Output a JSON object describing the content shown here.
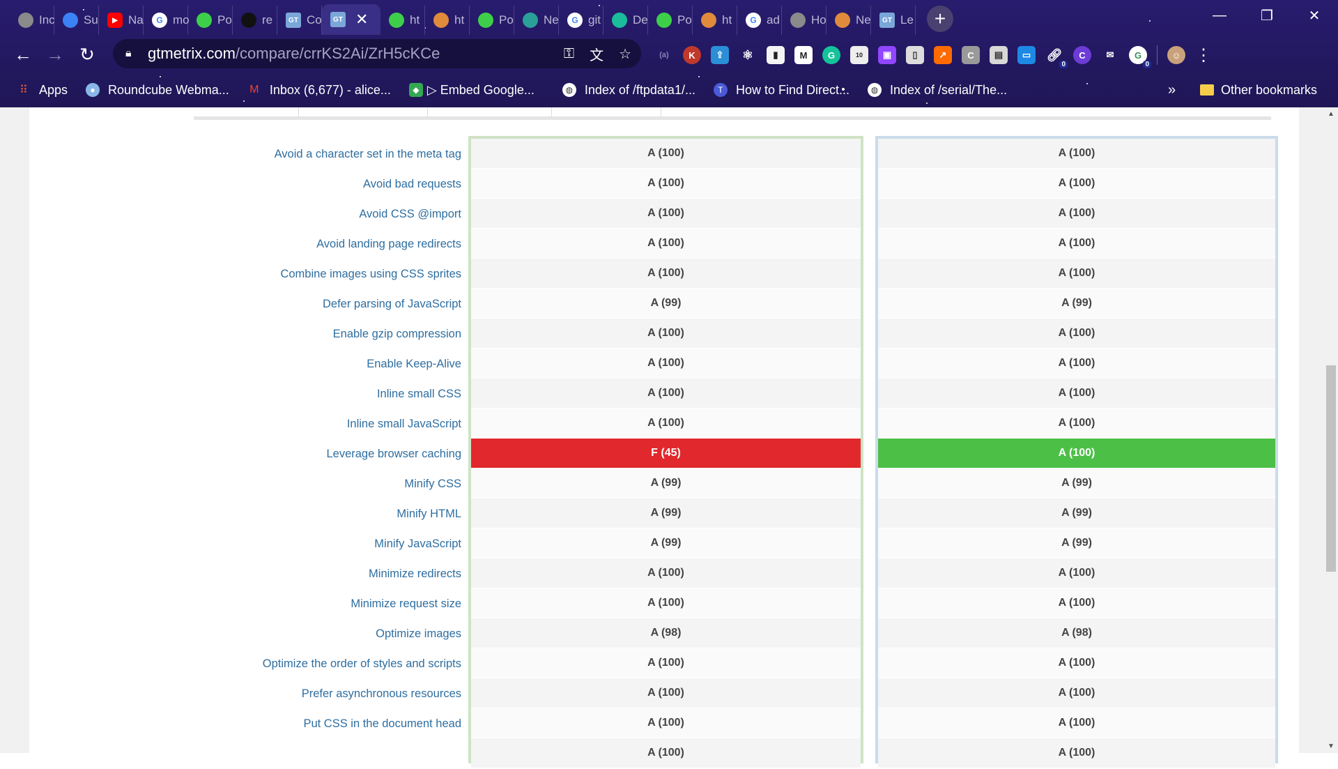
{
  "browser": {
    "tabs": [
      {
        "label": "Inc",
        "icon": "globe-icon",
        "color": "#8a8a8a"
      },
      {
        "label": "Su",
        "icon": "ms-icon",
        "color": "#3b82f6"
      },
      {
        "label": "Na",
        "icon": "youtube-icon",
        "color": "#ff0000"
      },
      {
        "label": "mo",
        "icon": "google-icon",
        "color": "#ffffff"
      },
      {
        "label": "Po",
        "icon": "alien-icon",
        "color": "#3ecf4a"
      },
      {
        "label": "re",
        "icon": "github-icon",
        "color": "#111111"
      },
      {
        "label": "Co",
        "icon": "gtmetrix-icon",
        "color": "#7aa7d8"
      },
      {
        "label": "",
        "icon": "gtmetrix-icon",
        "color": "#7aa7d8",
        "active": true
      },
      {
        "label": "ht",
        "icon": "alien-icon",
        "color": "#3ecf4a"
      },
      {
        "label": "ht",
        "icon": "pen-icon",
        "color": "#e08a3c"
      },
      {
        "label": "Po",
        "icon": "alien-icon",
        "color": "#3ecf4a"
      },
      {
        "label": "Ne",
        "icon": "triangle-icon",
        "color": "#2aa198"
      },
      {
        "label": "git",
        "icon": "google-icon",
        "color": "#ffffff"
      },
      {
        "label": "De",
        "icon": "diamond-icon",
        "color": "#1abc9c"
      },
      {
        "label": "Po",
        "icon": "alien-icon",
        "color": "#3ecf4a"
      },
      {
        "label": "ht",
        "icon": "pen-icon",
        "color": "#e08a3c"
      },
      {
        "label": "ad",
        "icon": "google-icon",
        "color": "#ffffff"
      },
      {
        "label": "Ho",
        "icon": "globe-icon",
        "color": "#8a8a8a"
      },
      {
        "label": "Ne",
        "icon": "pen-icon",
        "color": "#e08a3c"
      },
      {
        "label": "Le",
        "icon": "gtmetrix-icon",
        "color": "#7aa7d8"
      }
    ],
    "url_host": "gtmetrix.com",
    "url_path": "/compare/crrKS2Ai/ZrH5cKCe",
    "bookmarks": {
      "apps": "Apps",
      "items": [
        "Roundcube Webma...",
        "Inbox (6,677) - alice...",
        "▷ Embed Google...",
        "Index of /ftpdata1/...",
        "How to Find Direct...",
        "Index of /serial/The..."
      ],
      "more": "»",
      "other": "Other bookmarks"
    },
    "extension_badges": {
      "first": "0",
      "second": "0"
    }
  },
  "rows": [
    {
      "label": "Avoid a character set in the meta tag",
      "a": "A (100)",
      "b": "A (100)"
    },
    {
      "label": "Avoid bad requests",
      "a": "A (100)",
      "b": "A (100)"
    },
    {
      "label": "Avoid CSS @import",
      "a": "A (100)",
      "b": "A (100)"
    },
    {
      "label": "Avoid landing page redirects",
      "a": "A (100)",
      "b": "A (100)"
    },
    {
      "label": "Combine images using CSS sprites",
      "a": "A (100)",
      "b": "A (100)"
    },
    {
      "label": "Defer parsing of JavaScript",
      "a": "A (99)",
      "b": "A (99)"
    },
    {
      "label": "Enable gzip compression",
      "a": "A (100)",
      "b": "A (100)"
    },
    {
      "label": "Enable Keep-Alive",
      "a": "A (100)",
      "b": "A (100)"
    },
    {
      "label": "Inline small CSS",
      "a": "A (100)",
      "b": "A (100)"
    },
    {
      "label": "Inline small JavaScript",
      "a": "A (100)",
      "b": "A (100)"
    },
    {
      "label": "Leverage browser caching",
      "a": "F (45)",
      "b": "A (100)",
      "a_status": "bad",
      "b_status": "good"
    },
    {
      "label": "Minify CSS",
      "a": "A (99)",
      "b": "A (99)"
    },
    {
      "label": "Minify HTML",
      "a": "A (99)",
      "b": "A (99)"
    },
    {
      "label": "Minify JavaScript",
      "a": "A (99)",
      "b": "A (99)"
    },
    {
      "label": "Minimize redirects",
      "a": "A (100)",
      "b": "A (100)"
    },
    {
      "label": "Minimize request size",
      "a": "A (100)",
      "b": "A (100)"
    },
    {
      "label": "Optimize images",
      "a": "A (98)",
      "b": "A (98)"
    },
    {
      "label": "Optimize the order of styles and scripts",
      "a": "A (100)",
      "b": "A (100)"
    },
    {
      "label": "Prefer asynchronous resources",
      "a": "A (100)",
      "b": "A (100)"
    },
    {
      "label": "Put CSS in the document head",
      "a": "A (100)",
      "b": "A (100)"
    },
    {
      "label": "",
      "a": "A (100)",
      "b": "A (100)"
    }
  ],
  "colors": {
    "link": "#2e6ea0",
    "bad": "#e1282c",
    "good": "#4cbf46",
    "colA_border": "#cfe3c5",
    "colB_border": "#cbdbea"
  }
}
